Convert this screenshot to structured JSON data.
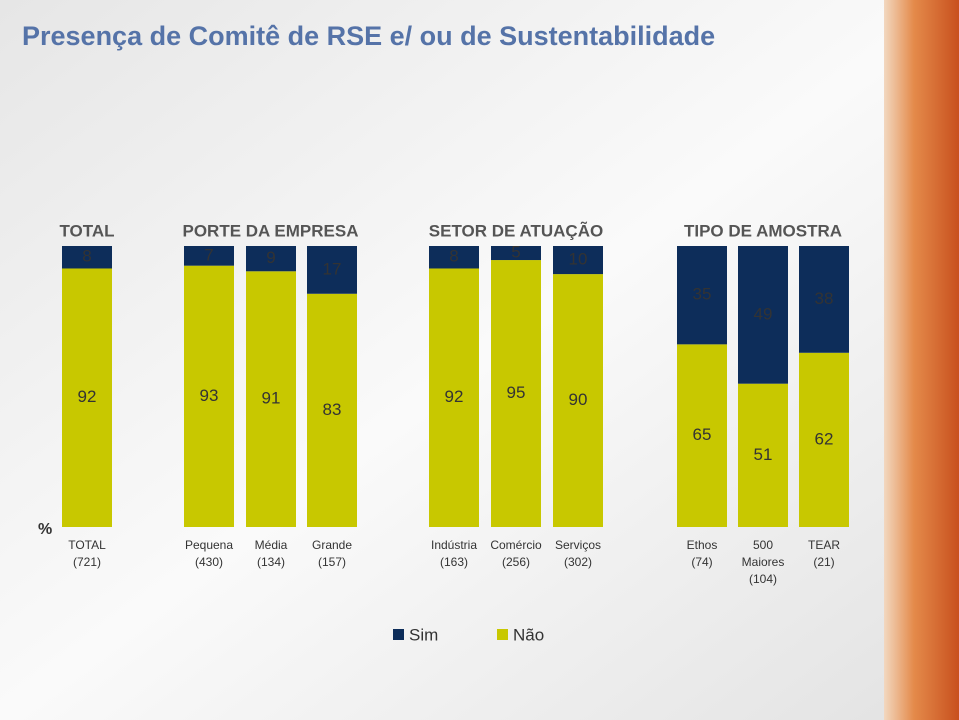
{
  "chart_data": {
    "type": "stacked_bar",
    "title": "Presença de Comitê de RSE e/ ou de Sustentabilidade",
    "y_label": "%",
    "groups": [
      {
        "name": "TOTAL",
        "categories": [
          "TOTAL (721)"
        ]
      },
      {
        "name": "PORTE DA EMPRESA",
        "categories": [
          "Pequena (430)",
          "Média (134)",
          "Grande (157)"
        ]
      },
      {
        "name": "SETOR DE ATUAÇÃO",
        "categories": [
          "Indústria (163)",
          "Comércio (256)",
          "Serviços (302)"
        ]
      },
      {
        "name": "TIPO DE AMOSTRA",
        "categories": [
          "Ethos (74)",
          "500 Maiores (104)",
          "TEAR (21)"
        ]
      }
    ],
    "series": [
      {
        "name": "Sim",
        "color": "#0d2d5a",
        "values": [
          8,
          7,
          9,
          17,
          8,
          5,
          10,
          35,
          49,
          38
        ]
      },
      {
        "name": "Não",
        "color": "#c8c800",
        "values": [
          92,
          93,
          91,
          83,
          92,
          95,
          90,
          65,
          51,
          62
        ]
      }
    ],
    "ylim": [
      0,
      100
    ]
  }
}
